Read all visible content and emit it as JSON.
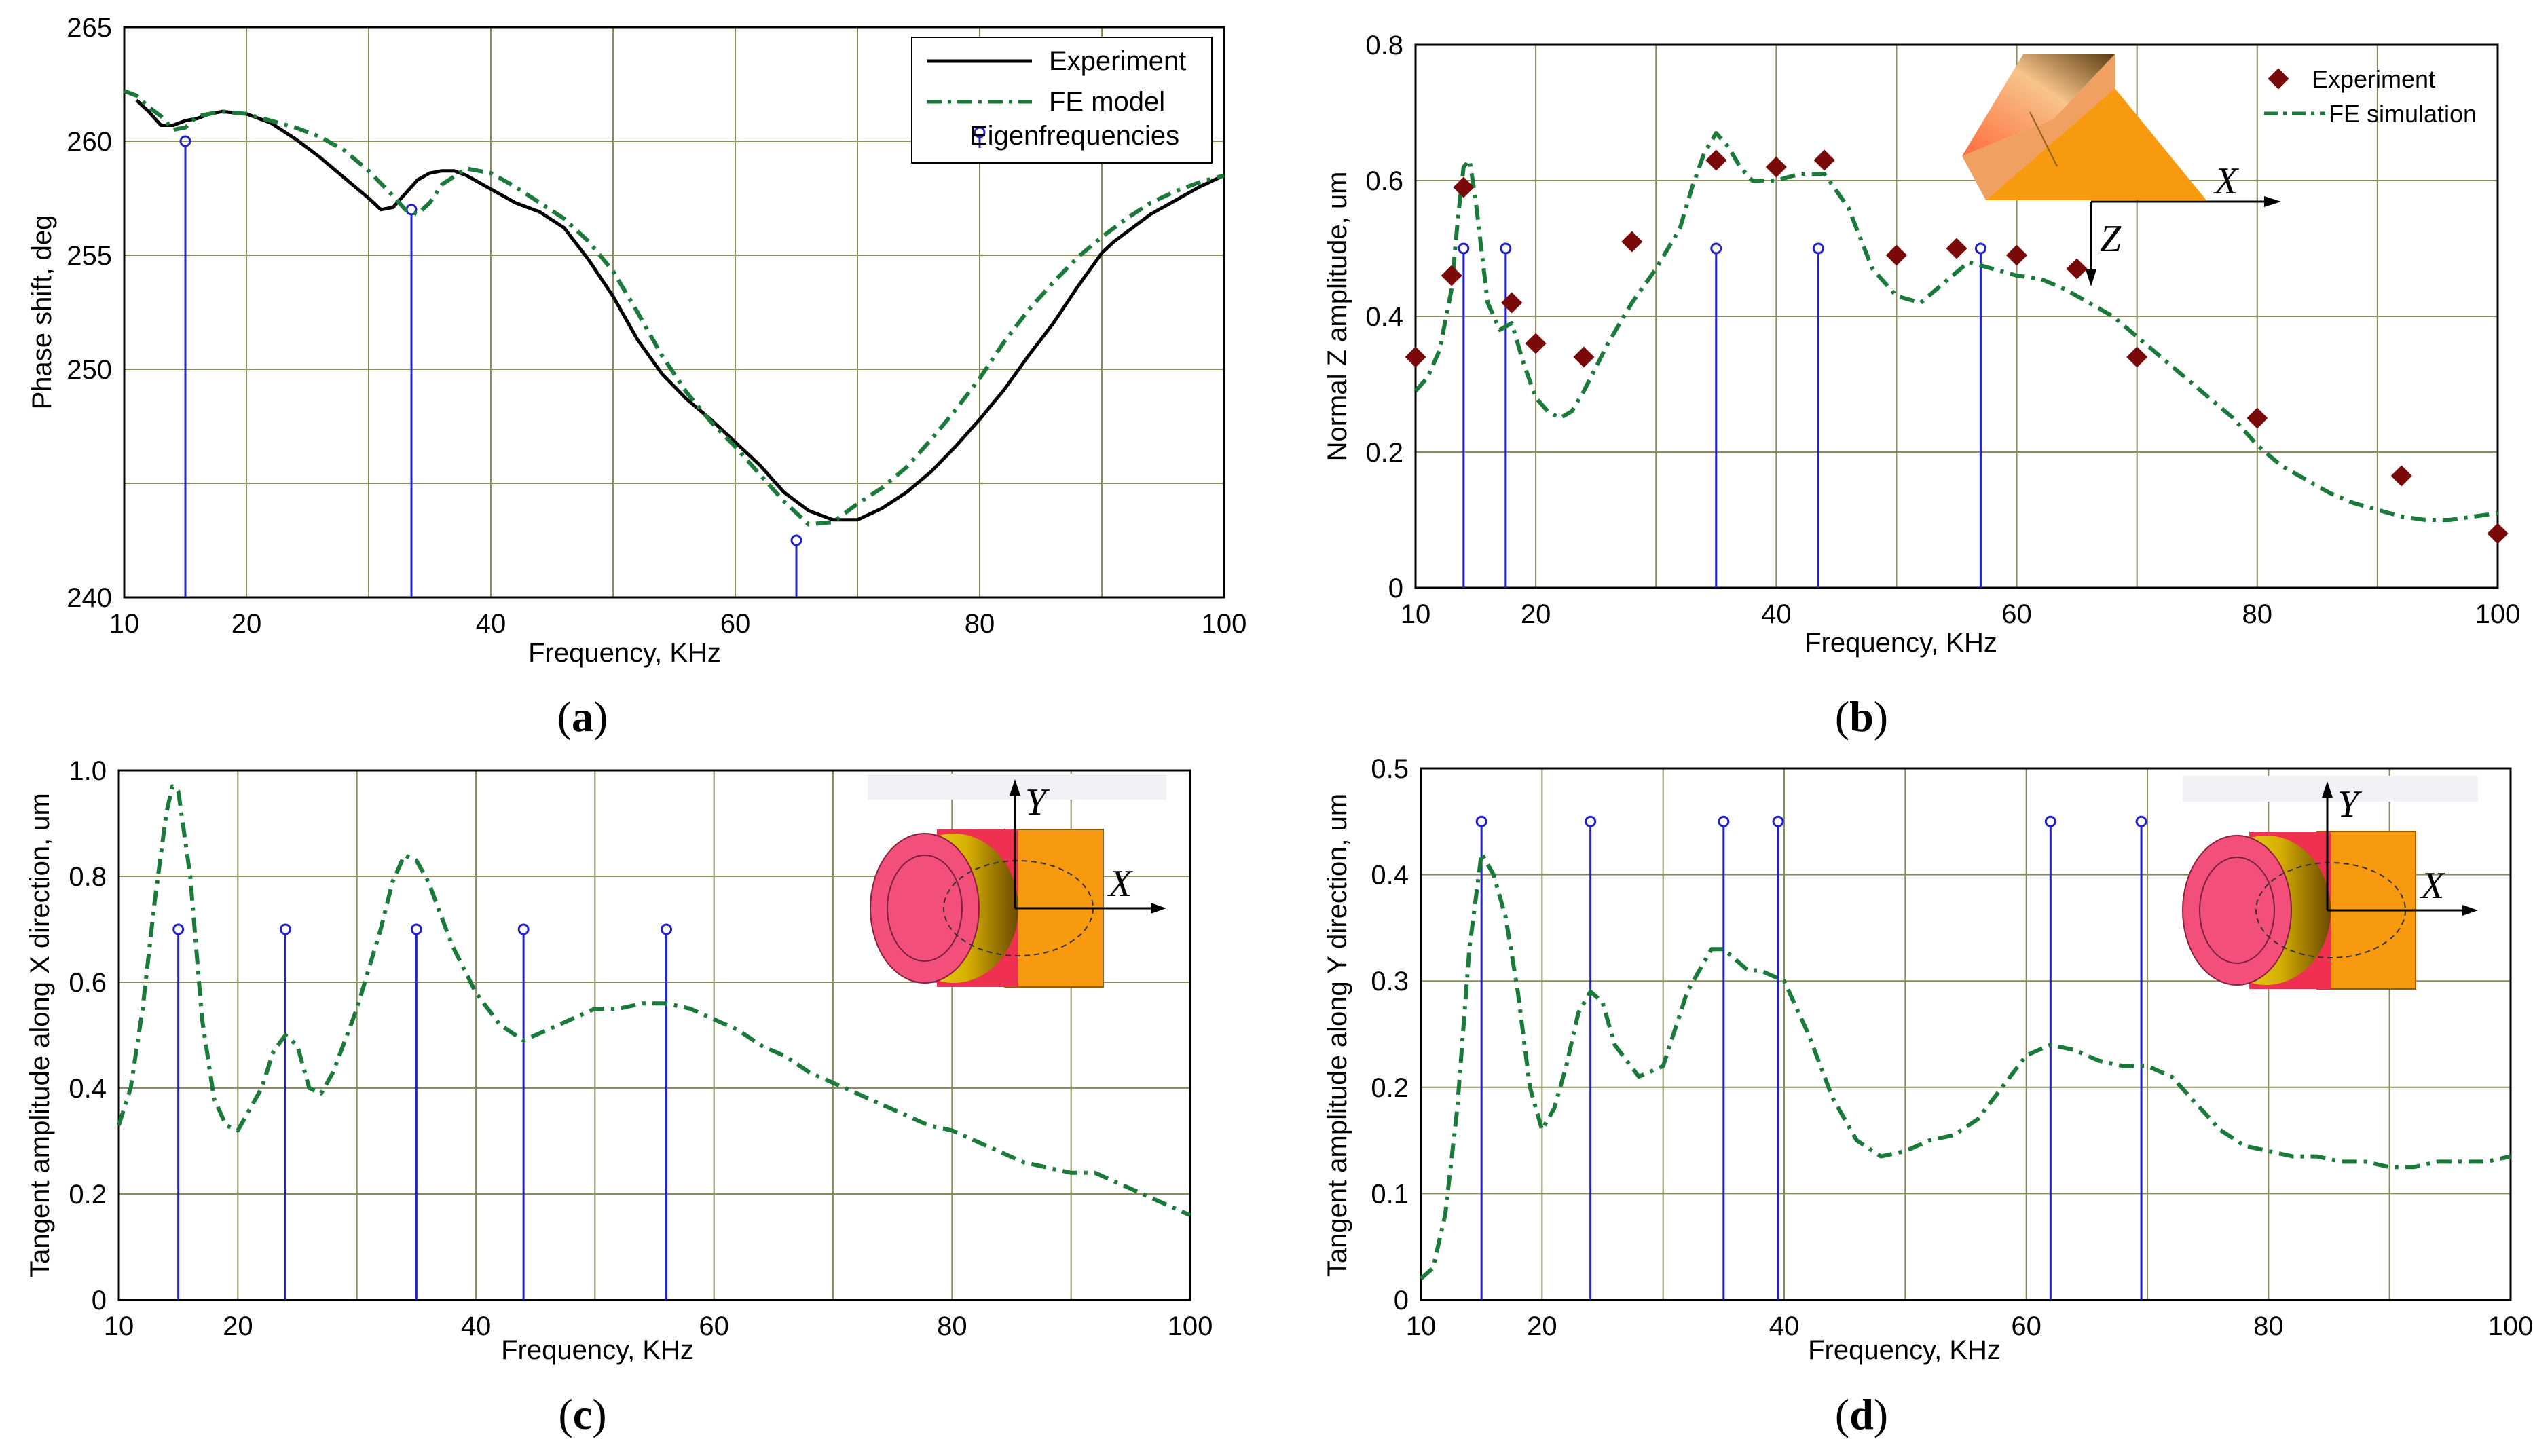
{
  "colors": {
    "experiment": "#000000",
    "fe": "#1a7a3a",
    "stem": "#2020cc",
    "marker": "#7a0a0a",
    "grid": "#8c8c5a"
  },
  "chart_data": [
    {
      "id": "a",
      "caption_open": "(",
      "caption_letter": "a",
      "caption_close": ")",
      "type": "line",
      "xlabel": "Frequency, KHz",
      "ylabel": "Phase shift, deg",
      "xlim": [
        10,
        100
      ],
      "ylim": [
        240,
        265
      ],
      "xticks": [
        10,
        20,
        40,
        60,
        80,
        100
      ],
      "yticks": [
        240,
        250,
        255,
        260,
        265
      ],
      "xgrid": [
        20,
        30,
        40,
        50,
        60,
        70,
        80,
        90,
        100
      ],
      "ygrid": [
        245,
        250,
        255,
        260,
        265
      ],
      "legend": [
        "Experiment",
        "FE model",
        "Eigenfrequencies"
      ],
      "series": [
        {
          "name": "Experiment",
          "style": "solid",
          "x": [
            11,
            12,
            13,
            14,
            15,
            16,
            17,
            18,
            20,
            22,
            24,
            26,
            28,
            30,
            31,
            32,
            33,
            34,
            35,
            36,
            37,
            38,
            40,
            42,
            44,
            46,
            48,
            50,
            52,
            54,
            56,
            58,
            60,
            62,
            64,
            66,
            68,
            70,
            72,
            74,
            76,
            78,
            80,
            82,
            84,
            86,
            88,
            90,
            91,
            92,
            94,
            96,
            98,
            100
          ],
          "y": [
            261.8,
            261.3,
            260.7,
            260.7,
            260.9,
            261.0,
            261.2,
            261.3,
            261.2,
            260.8,
            260.1,
            259.3,
            258.4,
            257.5,
            257.0,
            257.1,
            257.7,
            258.3,
            258.6,
            258.7,
            258.7,
            258.5,
            257.9,
            257.3,
            256.9,
            256.2,
            254.8,
            253.2,
            251.3,
            249.8,
            248.7,
            247.8,
            246.8,
            245.8,
            244.6,
            243.8,
            243.4,
            243.4,
            243.9,
            244.6,
            245.5,
            246.6,
            247.8,
            249.1,
            250.6,
            252.0,
            253.6,
            255.1,
            255.6,
            256.0,
            256.8,
            257.4,
            258.0,
            258.5
          ]
        },
        {
          "name": "FE model",
          "style": "dashdot",
          "x": [
            10,
            11,
            12,
            13,
            14,
            15,
            16,
            18,
            20,
            22,
            24,
            26,
            28,
            30,
            32,
            33,
            34,
            35,
            36,
            38,
            40,
            42,
            44,
            46,
            48,
            50,
            52,
            54,
            56,
            58,
            60,
            62,
            64,
            66,
            68,
            70,
            72,
            74,
            76,
            78,
            80,
            82,
            84,
            86,
            88,
            90,
            92,
            94,
            96,
            98,
            100
          ],
          "y": [
            262.2,
            262.0,
            261.5,
            261.1,
            260.5,
            260.6,
            261.1,
            261.3,
            261.2,
            260.9,
            260.6,
            260.2,
            259.6,
            258.7,
            257.6,
            257.0,
            256.8,
            257.3,
            258.1,
            258.8,
            258.6,
            258.0,
            257.3,
            256.6,
            255.6,
            254.3,
            252.5,
            250.6,
            249.0,
            247.7,
            246.6,
            245.4,
            244.2,
            243.2,
            243.3,
            244.1,
            244.8,
            245.7,
            246.9,
            248.2,
            249.6,
            251.2,
            252.6,
            253.8,
            254.9,
            255.8,
            256.6,
            257.3,
            257.8,
            258.2,
            258.5
          ]
        }
      ],
      "stems": {
        "x": [
          15,
          33.5,
          65
        ],
        "y": [
          260,
          257,
          242.5
        ]
      }
    },
    {
      "id": "b",
      "caption_open": "(",
      "caption_letter": "b",
      "caption_close": ")",
      "type": "line",
      "xlabel": "Frequency, KHz",
      "ylabel": "Normal Z amplitude, um",
      "xlim": [
        10,
        100
      ],
      "ylim": [
        0,
        0.8
      ],
      "xticks": [
        10,
        20,
        40,
        60,
        80,
        100
      ],
      "yticks": [
        0,
        0.2,
        0.4,
        0.6,
        0.8
      ],
      "xgrid": [
        20,
        30,
        40,
        50,
        60,
        70,
        80,
        90,
        100
      ],
      "ygrid": [
        0.2,
        0.4,
        0.6,
        0.8
      ],
      "legend": [
        "Experiment",
        "FE simulation"
      ],
      "axis_labels": {
        "x": "X",
        "z": "Z"
      },
      "markers": {
        "name": "Experiment",
        "x": [
          10,
          13,
          14,
          18,
          20,
          24,
          28,
          35,
          40,
          44,
          50,
          55,
          60,
          65,
          70,
          80,
          92,
          100
        ],
        "y": [
          0.34,
          0.46,
          0.59,
          0.42,
          0.36,
          0.34,
          0.51,
          0.63,
          0.62,
          0.63,
          0.49,
          0.5,
          0.49,
          0.47,
          0.34,
          0.25,
          0.165,
          0.08
        ]
      },
      "series": [
        {
          "name": "FE simulation",
          "style": "dashdot",
          "x": [
            10,
            11,
            12,
            13,
            13.5,
            14,
            14.5,
            15,
            16,
            17,
            18,
            19,
            20,
            21,
            22,
            23,
            24,
            26,
            28,
            30,
            32,
            33,
            34,
            35,
            36,
            37,
            38,
            40,
            42,
            44,
            46,
            48,
            50,
            52,
            54,
            56,
            58,
            60,
            62,
            64,
            66,
            68,
            70,
            72,
            74,
            76,
            78,
            80,
            82,
            84,
            86,
            88,
            90,
            92,
            94,
            96,
            98,
            100
          ],
          "y": [
            0.29,
            0.31,
            0.35,
            0.44,
            0.54,
            0.62,
            0.63,
            0.57,
            0.42,
            0.38,
            0.39,
            0.33,
            0.28,
            0.26,
            0.25,
            0.26,
            0.29,
            0.36,
            0.42,
            0.47,
            0.53,
            0.59,
            0.64,
            0.67,
            0.65,
            0.62,
            0.6,
            0.6,
            0.61,
            0.61,
            0.56,
            0.47,
            0.43,
            0.42,
            0.45,
            0.48,
            0.47,
            0.46,
            0.455,
            0.44,
            0.42,
            0.4,
            0.37,
            0.34,
            0.31,
            0.28,
            0.25,
            0.21,
            0.18,
            0.16,
            0.14,
            0.125,
            0.115,
            0.105,
            0.1,
            0.1,
            0.105,
            0.11
          ]
        }
      ],
      "stems": {
        "x": [
          14,
          17.5,
          35,
          43.5,
          57
        ],
        "y": [
          0.5,
          0.5,
          0.5,
          0.5,
          0.5
        ]
      }
    },
    {
      "id": "c",
      "caption_open": "(",
      "caption_letter": "c",
      "caption_close": ")",
      "type": "line",
      "xlabel": "Frequency, KHz",
      "ylabel": "Tangent amplitude along X direction, um",
      "xlim": [
        10,
        100
      ],
      "ylim": [
        0,
        1.0
      ],
      "xticks": [
        10,
        20,
        40,
        60,
        80,
        100
      ],
      "yticks": [
        0,
        0.2,
        0.4,
        0.6,
        0.8,
        1.0
      ],
      "ytick_labels": [
        "0",
        "0.2",
        "0.4",
        "0.6",
        "0.8",
        "1.0"
      ],
      "xgrid": [
        20,
        30,
        40,
        50,
        60,
        70,
        80,
        90,
        100
      ],
      "ygrid": [
        0.2,
        0.4,
        0.6,
        0.8,
        1.0
      ],
      "axis_labels": {
        "x": "X",
        "y": "Y"
      },
      "series": [
        {
          "name": "FE model",
          "style": "dashdot",
          "x": [
            10,
            11,
            12,
            13,
            14,
            14.5,
            15,
            16,
            17,
            18,
            19,
            20,
            22,
            23,
            24,
            25,
            26,
            27,
            28,
            30,
            32,
            33,
            34,
            35,
            36,
            38,
            40,
            42,
            44,
            46,
            48,
            50,
            52,
            54,
            56,
            58,
            60,
            62,
            64,
            66,
            68,
            70,
            72,
            74,
            76,
            78,
            80,
            82,
            84,
            86,
            88,
            90,
            92,
            94,
            96,
            98,
            100
          ],
          "y": [
            0.33,
            0.4,
            0.55,
            0.75,
            0.92,
            0.97,
            0.96,
            0.8,
            0.53,
            0.38,
            0.33,
            0.32,
            0.4,
            0.47,
            0.5,
            0.48,
            0.4,
            0.39,
            0.43,
            0.55,
            0.7,
            0.79,
            0.84,
            0.83,
            0.79,
            0.67,
            0.58,
            0.52,
            0.49,
            0.51,
            0.53,
            0.55,
            0.55,
            0.56,
            0.56,
            0.55,
            0.53,
            0.51,
            0.48,
            0.46,
            0.43,
            0.41,
            0.39,
            0.37,
            0.35,
            0.33,
            0.32,
            0.3,
            0.28,
            0.26,
            0.25,
            0.24,
            0.24,
            0.22,
            0.2,
            0.18,
            0.16
          ]
        }
      ],
      "stems": {
        "x": [
          15,
          24,
          35,
          44,
          56
        ],
        "y": [
          0.7,
          0.7,
          0.7,
          0.7,
          0.7
        ]
      }
    },
    {
      "id": "d",
      "caption_open": "(",
      "caption_letter": "d",
      "caption_close": ")",
      "type": "line",
      "xlabel": "Frequency, KHz",
      "ylabel": "Tangent amplitude along Y direction, um",
      "xlim": [
        10,
        100
      ],
      "ylim": [
        0,
        0.5
      ],
      "xticks": [
        10,
        20,
        40,
        60,
        80,
        100
      ],
      "yticks": [
        0,
        0.1,
        0.2,
        0.3,
        0.4,
        0.5
      ],
      "xgrid": [
        20,
        30,
        40,
        50,
        60,
        70,
        80,
        90,
        100
      ],
      "ygrid": [
        0.1,
        0.2,
        0.3,
        0.4,
        0.5
      ],
      "axis_labels": {
        "x": "X",
        "y": "Y"
      },
      "series": [
        {
          "name": "FE model",
          "style": "dashdot",
          "x": [
            10,
            11,
            12,
            13,
            14,
            15,
            16,
            17,
            18,
            19,
            20,
            21,
            22,
            23,
            24,
            25,
            26,
            28,
            30,
            32,
            34,
            35,
            36,
            37,
            38,
            40,
            42,
            44,
            46,
            48,
            50,
            52,
            54,
            56,
            58,
            60,
            62,
            64,
            66,
            68,
            70,
            72,
            74,
            76,
            78,
            80,
            82,
            84,
            86,
            88,
            90,
            92,
            94,
            96,
            98,
            100
          ],
          "y": [
            0.02,
            0.03,
            0.08,
            0.18,
            0.33,
            0.42,
            0.4,
            0.36,
            0.29,
            0.2,
            0.16,
            0.18,
            0.22,
            0.27,
            0.29,
            0.28,
            0.24,
            0.21,
            0.22,
            0.29,
            0.33,
            0.33,
            0.32,
            0.31,
            0.31,
            0.3,
            0.25,
            0.19,
            0.15,
            0.135,
            0.14,
            0.15,
            0.155,
            0.17,
            0.2,
            0.23,
            0.24,
            0.235,
            0.225,
            0.22,
            0.22,
            0.21,
            0.185,
            0.16,
            0.145,
            0.14,
            0.135,
            0.135,
            0.13,
            0.13,
            0.125,
            0.125,
            0.13,
            0.13,
            0.13,
            0.135
          ]
        }
      ],
      "stems": {
        "x": [
          15,
          24,
          35,
          39.5,
          62,
          69.5
        ],
        "y": [
          0.45,
          0.45,
          0.45,
          0.45,
          0.45,
          0.45
        ]
      }
    }
  ]
}
